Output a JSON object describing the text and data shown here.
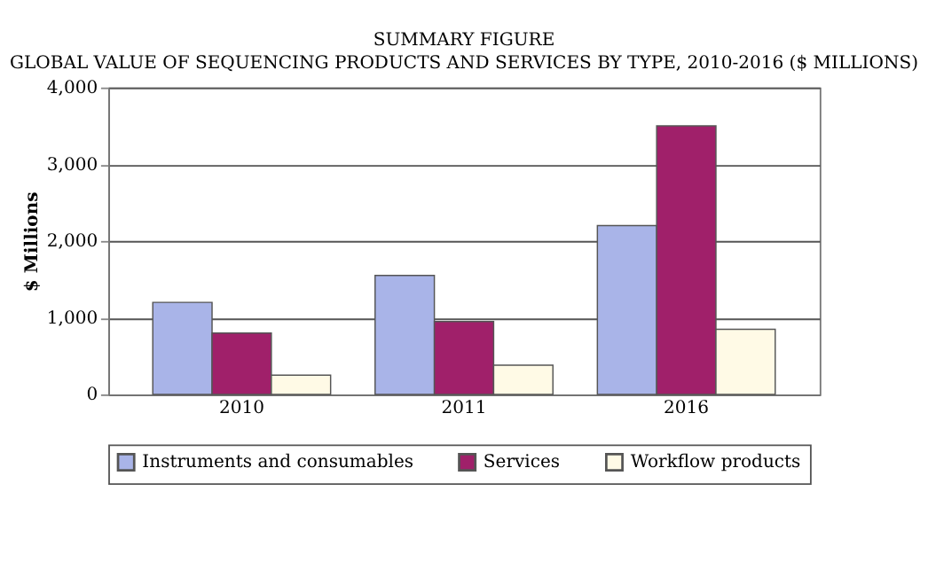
{
  "chart_data": {
    "type": "bar",
    "title": "SUMMARY FIGURE",
    "subtitle": "GLOBAL VALUE OF SEQUENCING PRODUCTS AND SERVICES BY TYPE, 2010-2016 ($ MILLIONS)",
    "ylabel": "$ Millions",
    "categories": [
      "2010",
      "2011",
      "2016"
    ],
    "series": [
      {
        "name": "Instruments and consumables",
        "color": "#a9b4e8",
        "values": [
          1200,
          1550,
          2200
        ]
      },
      {
        "name": "Services",
        "color": "#a0206a",
        "values": [
          800,
          950,
          3500
        ]
      },
      {
        "name": "Workflow products",
        "color": "#fffae6",
        "values": [
          250,
          380,
          850
        ]
      }
    ],
    "ylim": [
      0,
      4000
    ],
    "yticks": [
      {
        "value": 0,
        "label": "0"
      },
      {
        "value": 1000,
        "label": "1,000"
      },
      {
        "value": 2000,
        "label": "2,000"
      },
      {
        "value": 3000,
        "label": "3,000"
      },
      {
        "value": 4000,
        "label": "4,000"
      }
    ],
    "grid": "y",
    "legend": "bottom"
  }
}
